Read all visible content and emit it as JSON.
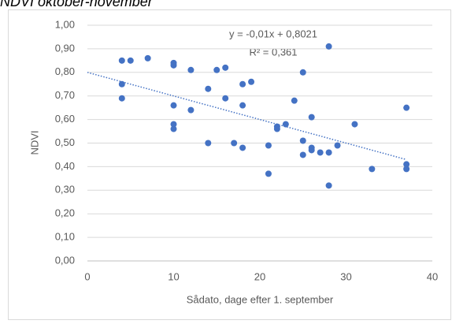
{
  "chart_data": {
    "type": "scatter",
    "title": "NDVI oktober-november",
    "x_label": "Sådato, dage efter 1. september",
    "y_label": "NDVI",
    "xlim": [
      0,
      40
    ],
    "xticks": [
      0,
      10,
      20,
      30,
      40
    ],
    "ylim": [
      0,
      1
    ],
    "yticks": [
      {
        "value": 0,
        "label": "0,00"
      },
      {
        "value": 0.1,
        "label": "0,10"
      },
      {
        "value": 0.2,
        "label": "0,20"
      },
      {
        "value": 0.3,
        "label": "0,30"
      },
      {
        "value": 0.4,
        "label": "0,40"
      },
      {
        "value": 0.5,
        "label": "0,50"
      },
      {
        "value": 0.6,
        "label": "0,60"
      },
      {
        "value": 0.7,
        "label": "0,70"
      },
      {
        "value": 0.8,
        "label": "0,80"
      },
      {
        "value": 0.9,
        "label": "0,90"
      },
      {
        "value": 1,
        "label": "1,00"
      }
    ],
    "grid": true,
    "series": [
      {
        "color": "#4472c4",
        "x": [
          4,
          5,
          7,
          4,
          4,
          10,
          10,
          10,
          10,
          10,
          12,
          12,
          14,
          14,
          15,
          16,
          16,
          17,
          18,
          18,
          18,
          19,
          21,
          21,
          22,
          22,
          23,
          24,
          25,
          25,
          25,
          26,
          26,
          26,
          27,
          28,
          28,
          28,
          29,
          31,
          33,
          37,
          37,
          37
        ],
        "values": [
          0.85,
          0.85,
          0.86,
          0.75,
          0.69,
          0.84,
          0.83,
          0.66,
          0.58,
          0.56,
          0.81,
          0.64,
          0.73,
          0.5,
          0.81,
          0.82,
          0.69,
          0.5,
          0.75,
          0.66,
          0.48,
          0.76,
          0.49,
          0.37,
          0.57,
          0.56,
          0.58,
          0.68,
          0.8,
          0.51,
          0.45,
          0.61,
          0.48,
          0.47,
          0.46,
          0.91,
          0.46,
          0.32,
          0.49,
          0.58,
          0.39,
          0.65,
          0.41,
          0.39
        ]
      }
    ],
    "trendline": {
      "x": [
        0,
        37
      ],
      "values": [
        0.8,
        0.43
      ],
      "color": "#4472c4",
      "equation": "y = -0,01x + 0,8021",
      "r2": "R² = 0,361"
    }
  }
}
